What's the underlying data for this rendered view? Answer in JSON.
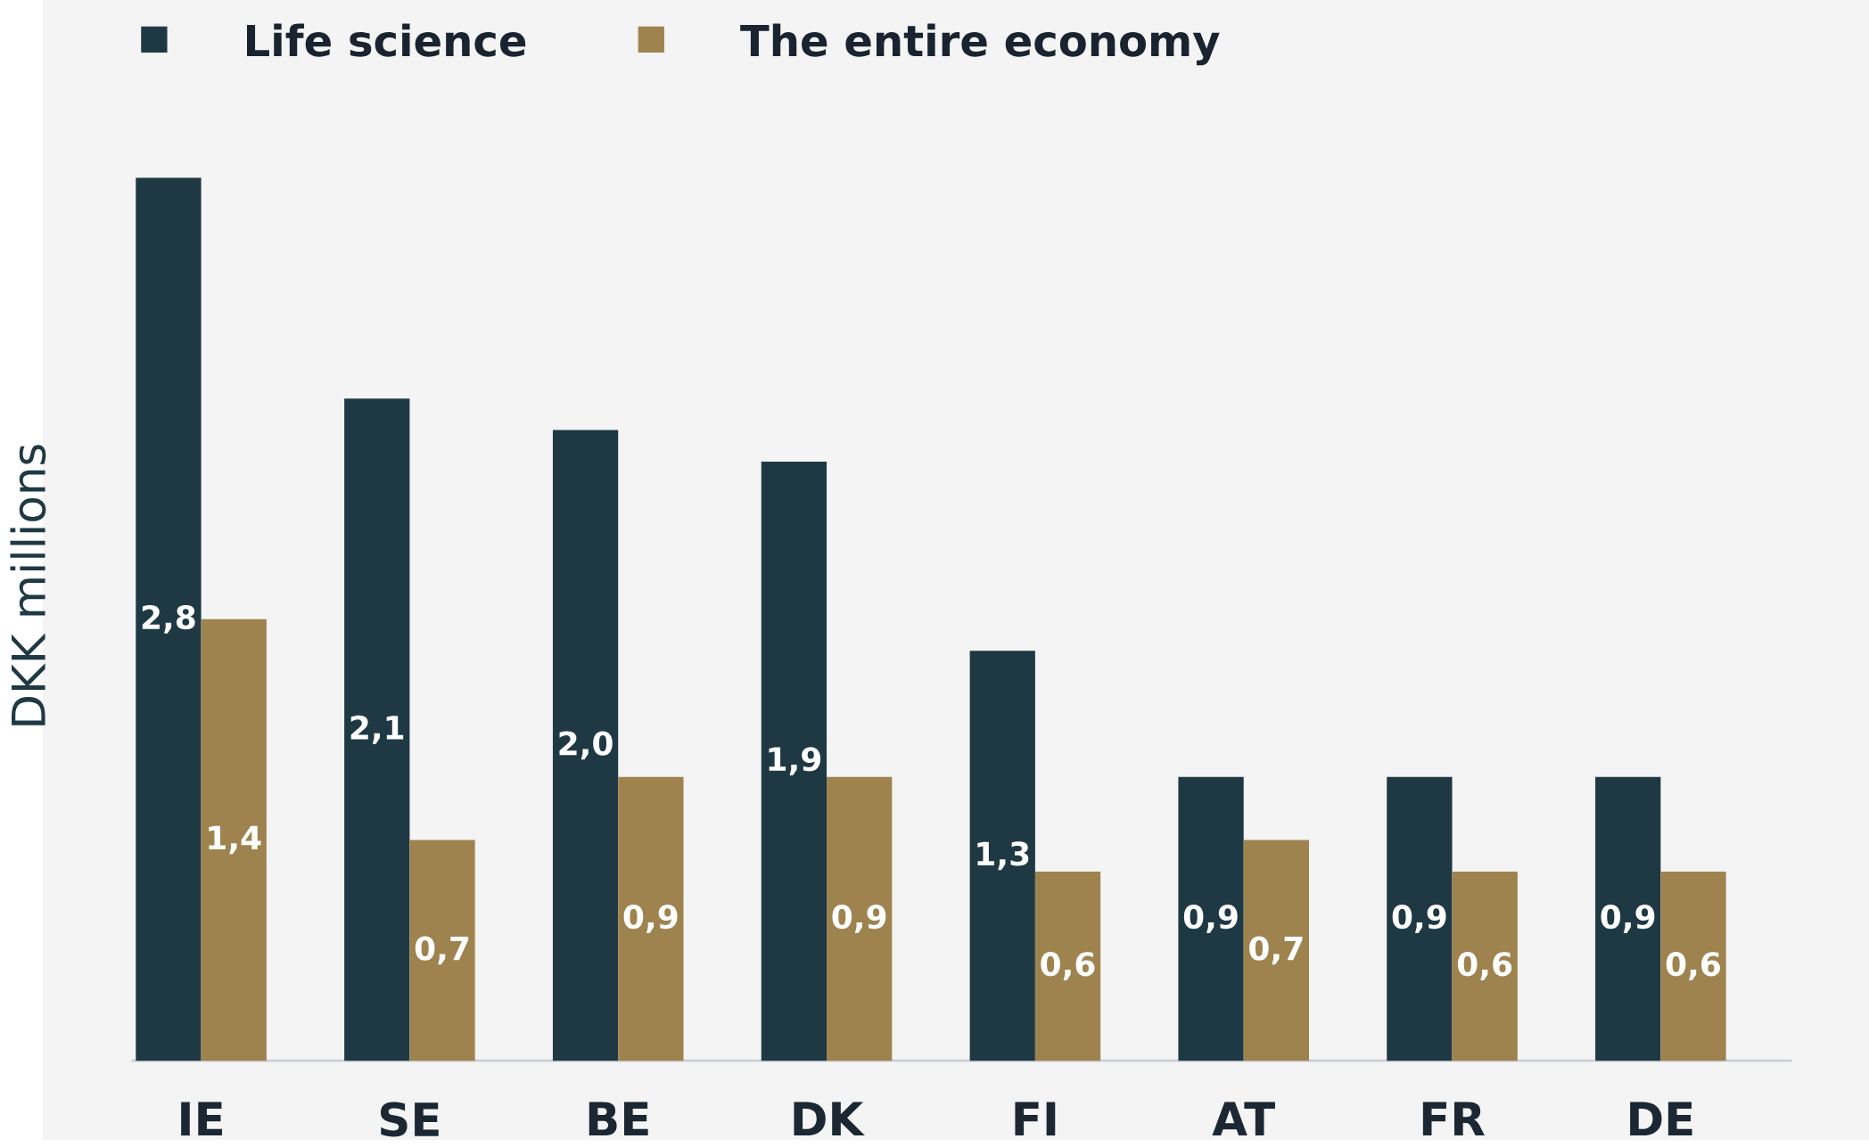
{
  "chart_data": {
    "type": "bar",
    "ylabel": "DKK millions",
    "categories": [
      "IE",
      "SE",
      "BE",
      "DK",
      "FI",
      "AT",
      "FR",
      "DE"
    ],
    "series": [
      {
        "name": "Life science",
        "color": "#1f3944",
        "values": [
          2.8,
          2.1,
          2.0,
          1.9,
          1.3,
          0.9,
          0.9,
          0.9
        ],
        "value_labels": [
          "2,8",
          "2,1",
          "2,0",
          "1,9",
          "1,3",
          "0,9",
          "0,9",
          "0,9"
        ]
      },
      {
        "name": "The entire economy",
        "color": "#9e834e",
        "values": [
          1.4,
          0.7,
          0.9,
          0.9,
          0.6,
          0.7,
          0.6,
          0.6
        ],
        "value_labels": [
          "1,4",
          "0,7",
          "0,9",
          "0,9",
          "0,6",
          "0,7",
          "0,6",
          "0,6"
        ]
      }
    ],
    "legend": "top left"
  }
}
